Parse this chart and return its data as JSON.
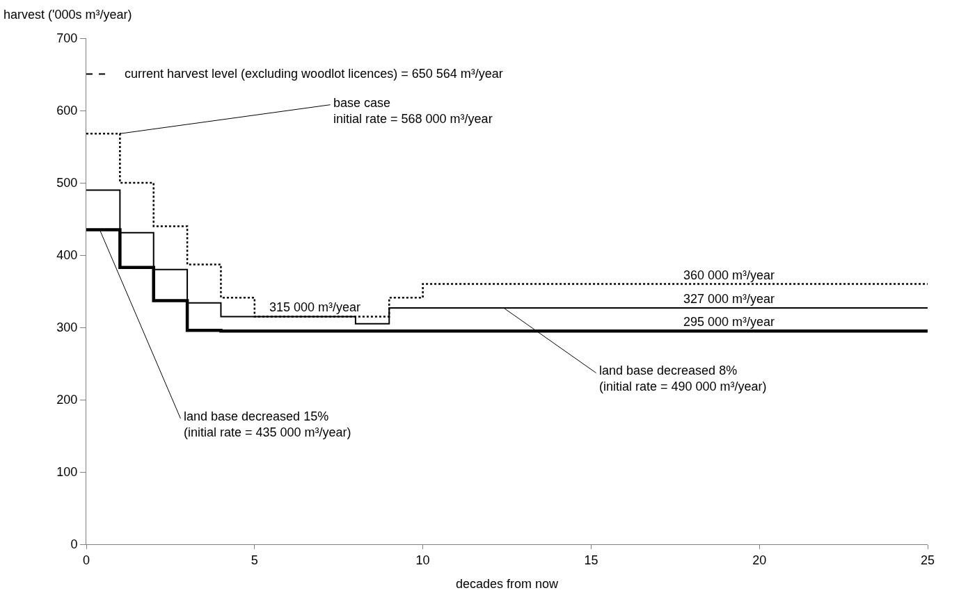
{
  "chart_data": {
    "type": "step",
    "xlabel": "decades from now",
    "ylabel": "harvest ('000s m³/year)",
    "xlim": [
      0,
      25
    ],
    "xticks": [
      0,
      5,
      10,
      15,
      20,
      25
    ],
    "ylim": [
      0,
      700
    ],
    "yticks": [
      0,
      100,
      200,
      300,
      400,
      500,
      600,
      700
    ],
    "marker": "none",
    "series": [
      {
        "color": "#000000",
        "line_style": "dotted",
        "x": [
          0,
          1,
          2,
          3,
          4,
          5,
          9,
          10,
          25
        ],
        "values": [
          568,
          500,
          440,
          387,
          341,
          315,
          341,
          360,
          360
        ]
      },
      {
        "color": "#000000",
        "line_style": "solid",
        "x": [
          0,
          1,
          2,
          3,
          4,
          8,
          9,
          25
        ],
        "values": [
          490,
          431,
          380,
          334,
          315,
          305,
          327,
          327
        ]
      },
      {
        "color": "#000000",
        "line_style": "solid",
        "x": [
          0,
          1,
          2,
          3,
          4,
          25
        ],
        "values": [
          435,
          383,
          337,
          296,
          295,
          295
        ]
      }
    ],
    "ref_lines": [
      {
        "axis": "y",
        "value": 650.564,
        "label": "current harvest level (excluding woodlot licences) = 650 564 m³/year",
        "line_style": "dashed",
        "color": "#000000"
      }
    ],
    "annotations": [
      {
        "text": "base case\ninitial rate = 568 000 m³/year",
        "x": 1,
        "y": 568
      },
      {
        "text": "315 000 m³/year",
        "x": 6.8,
        "y": 315
      },
      {
        "text": "360 000 m³/year",
        "x": 19.1,
        "y": 360
      },
      {
        "text": "327 000 m³/year",
        "x": 19.1,
        "y": 327
      },
      {
        "text": "295 000 m³/year",
        "x": 19.1,
        "y": 295
      },
      {
        "text": "land base decreased 8%\n(initial rate = 490 000 m³/year)",
        "x": 12.4,
        "y": 327
      },
      {
        "text": "land base decreased 15%\n(initial rate = 435 000 m³/year)",
        "x": 0.4,
        "y": 435
      }
    ]
  }
}
